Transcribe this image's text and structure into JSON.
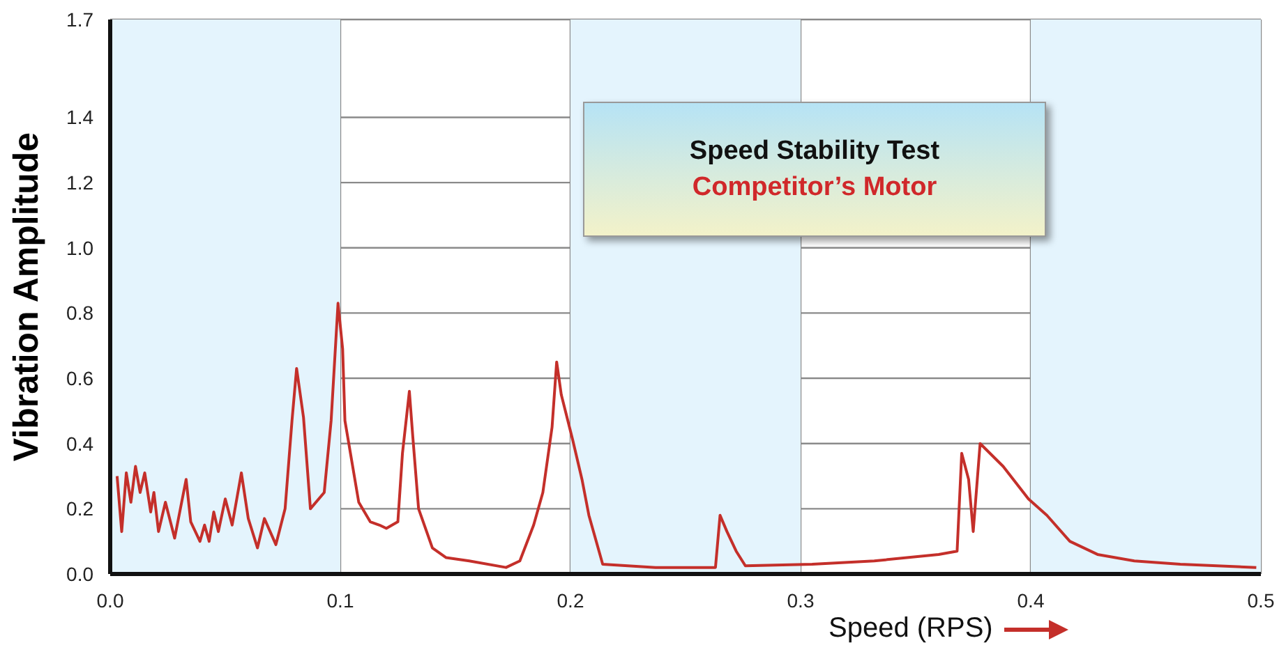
{
  "chart_data": {
    "type": "line",
    "title": "Speed Stability Test",
    "subtitle": "Competitor’s Motor",
    "xlabel": "Speed (RPS)",
    "ylabel": "Vibration Amplitude",
    "xlim": [
      0,
      0.5
    ],
    "xticks": [
      {
        "value": 0,
        "label": "0.0"
      },
      0.1,
      0.2,
      0.3,
      0.4,
      {
        "value": 0.5,
        "label": "0.5"
      }
    ],
    "ylim": [
      0,
      1.7
    ],
    "yticks": [
      {
        "value": 0,
        "label": "0.0"
      },
      0.2,
      0.4,
      0.6,
      0.8,
      {
        "value": 1,
        "label": "1.0"
      },
      1.2,
      1.4,
      1.7
    ],
    "grid": true,
    "legend": false,
    "marker": "none",
    "line_style": "solid",
    "bands": [
      {
        "axis": "x",
        "from": 0,
        "to": 0.1,
        "color": "#e4f4fd"
      },
      {
        "axis": "x",
        "from": 0.2,
        "to": 0.3,
        "color": "#e4f4fd"
      },
      {
        "axis": "x",
        "from": 0.4,
        "to": 0.5,
        "color": "#e4f4fd"
      }
    ],
    "x": [
      0.003,
      0.005,
      0.007,
      0.009,
      0.011,
      0.013,
      0.015,
      0.0176,
      0.019,
      0.021,
      0.024,
      0.028,
      0.033,
      0.035,
      0.039,
      0.041,
      0.043,
      0.045,
      0.047,
      0.05,
      0.053,
      0.057,
      0.06,
      0.064,
      0.067,
      0.072,
      0.076,
      0.079,
      0.081,
      0.084,
      0.087,
      0.093,
      0.096,
      0.099,
      0.101,
      0.102,
      0.108,
      0.113,
      0.117,
      0.12,
      0.125,
      0.127,
      0.13,
      0.1315,
      0.134,
      0.14,
      0.146,
      0.156,
      0.172,
      0.178,
      0.184,
      0.188,
      0.192,
      0.194,
      0.196,
      0.201,
      0.205,
      0.208,
      0.214,
      0.237,
      0.263,
      0.265,
      0.268,
      0.272,
      0.276,
      0.305,
      0.332,
      0.36,
      0.368,
      0.37,
      0.373,
      0.375,
      0.378,
      0.388,
      0.399,
      0.407,
      0.417,
      0.429,
      0.445,
      0.465,
      0.498
    ],
    "series": [
      {
        "color": "#c42f2a",
        "values": [
          0.3,
          0.13,
          0.31,
          0.22,
          0.33,
          0.25,
          0.31,
          0.19,
          0.25,
          0.13,
          0.22,
          0.11,
          0.29,
          0.16,
          0.1,
          0.15,
          0.1,
          0.19,
          0.13,
          0.23,
          0.15,
          0.31,
          0.17,
          0.08,
          0.17,
          0.09,
          0.2,
          0.47,
          0.63,
          0.48,
          0.2,
          0.25,
          0.47,
          0.83,
          0.69,
          0.47,
          0.22,
          0.16,
          0.15,
          0.14,
          0.16,
          0.37,
          0.56,
          0.42,
          0.2,
          0.08,
          0.05,
          0.04,
          0.02,
          0.04,
          0.15,
          0.25,
          0.45,
          0.65,
          0.55,
          0.41,
          0.29,
          0.18,
          0.03,
          0.02,
          0.02,
          0.18,
          0.13,
          0.07,
          0.025,
          0.03,
          0.04,
          0.06,
          0.07,
          0.37,
          0.29,
          0.13,
          0.4,
          0.33,
          0.23,
          0.18,
          0.1,
          0.06,
          0.04,
          0.03,
          0.02
        ]
      }
    ]
  }
}
